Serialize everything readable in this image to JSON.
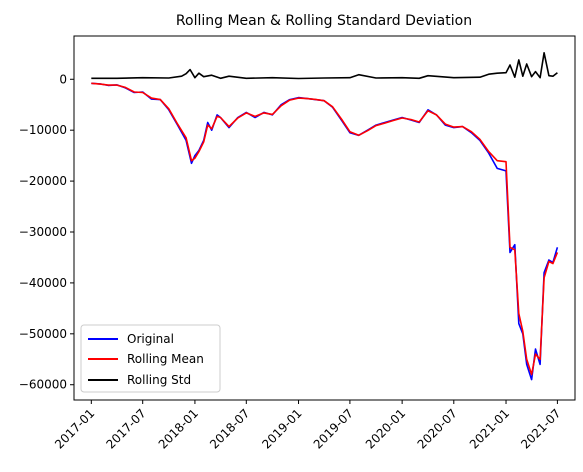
{
  "chart_data": {
    "type": "line",
    "title": "Rolling Mean & Rolling Standard Deviation",
    "xlabel": "",
    "ylabel": "",
    "x_ticks": [
      "2017-01",
      "2017-07",
      "2018-01",
      "2018-07",
      "2019-01",
      "2019-07",
      "2020-01",
      "2020-07",
      "2021-01",
      "2021-07"
    ],
    "y_ticks": [
      0,
      -10000,
      -20000,
      -30000,
      -40000,
      -50000,
      -60000
    ],
    "y_tick_labels": [
      "0",
      "−10000",
      "−20000",
      "−30000",
      "−40000",
      "−50000",
      "−60000"
    ],
    "xlim": [
      "2016-11-01",
      "2021-09-01"
    ],
    "ylim": [
      -63000,
      8500
    ],
    "grid": false,
    "legend_position": "lower-left",
    "series": [
      {
        "name": "Original",
        "color": "#0000ff",
        "x": [
          "2017-01-01",
          "2017-02-01",
          "2017-03-01",
          "2017-04-01",
          "2017-05-01",
          "2017-06-01",
          "2017-07-01",
          "2017-08-01",
          "2017-09-01",
          "2017-10-01",
          "2017-11-01",
          "2017-12-01",
          "2017-12-20",
          "2018-01-01",
          "2018-01-15",
          "2018-02-01",
          "2018-02-15",
          "2018-03-01",
          "2018-03-20",
          "2018-04-01",
          "2018-05-01",
          "2018-06-01",
          "2018-07-01",
          "2018-08-01",
          "2018-09-01",
          "2018-10-01",
          "2018-11-01",
          "2018-12-01",
          "2019-01-01",
          "2019-02-01",
          "2019-03-01",
          "2019-04-01",
          "2019-05-01",
          "2019-06-01",
          "2019-07-01",
          "2019-08-01",
          "2019-09-01",
          "2019-10-01",
          "2019-11-01",
          "2019-12-01",
          "2020-01-01",
          "2020-02-01",
          "2020-03-01",
          "2020-04-01",
          "2020-05-01",
          "2020-06-01",
          "2020-07-01",
          "2020-08-01",
          "2020-09-01",
          "2020-10-01",
          "2020-11-01",
          "2020-12-01",
          "2021-01-01",
          "2021-01-15",
          "2021-02-01",
          "2021-02-15",
          "2021-03-01",
          "2021-03-15",
          "2021-04-01",
          "2021-04-15",
          "2021-05-01",
          "2021-05-15",
          "2021-06-01",
          "2021-06-15",
          "2021-07-01"
        ],
        "y": [
          -800,
          -900,
          -1200,
          -1100,
          -1700,
          -2600,
          -2500,
          -3900,
          -4000,
          -6000,
          -9000,
          -12000,
          -16500,
          -15000,
          -14000,
          -12000,
          -8500,
          -10000,
          -7000,
          -7500,
          -9500,
          -7500,
          -6500,
          -7500,
          -6500,
          -7000,
          -5000,
          -4000,
          -3600,
          -3800,
          -4000,
          -4200,
          -5500,
          -8000,
          -10500,
          -11000,
          -10000,
          -9000,
          -8500,
          -8000,
          -7500,
          -8000,
          -8500,
          -6000,
          -7000,
          -9000,
          -9500,
          -9300,
          -10500,
          -12000,
          -14500,
          -17500,
          -18000,
          -34000,
          -32500,
          -48000,
          -50000,
          -56000,
          -59000,
          -53000,
          -56000,
          -38000,
          -35500,
          -36000,
          -33000
        ]
      },
      {
        "name": "Rolling Mean",
        "color": "#ff0000",
        "x": [
          "2017-01-01",
          "2017-02-01",
          "2017-03-01",
          "2017-04-01",
          "2017-05-01",
          "2017-06-01",
          "2017-07-01",
          "2017-08-01",
          "2017-09-01",
          "2017-10-01",
          "2017-11-01",
          "2017-12-01",
          "2017-12-20",
          "2018-01-01",
          "2018-01-15",
          "2018-02-01",
          "2018-02-15",
          "2018-03-01",
          "2018-03-20",
          "2018-04-01",
          "2018-05-01",
          "2018-06-01",
          "2018-07-01",
          "2018-08-01",
          "2018-09-01",
          "2018-10-01",
          "2018-11-01",
          "2018-12-01",
          "2019-01-01",
          "2019-02-01",
          "2019-03-01",
          "2019-04-01",
          "2019-05-01",
          "2019-06-01",
          "2019-07-01",
          "2019-08-01",
          "2019-09-01",
          "2019-10-01",
          "2019-11-01",
          "2019-12-01",
          "2020-01-01",
          "2020-02-01",
          "2020-03-01",
          "2020-04-01",
          "2020-05-01",
          "2020-06-01",
          "2020-07-01",
          "2020-08-01",
          "2020-09-01",
          "2020-10-01",
          "2020-11-01",
          "2020-12-01",
          "2021-01-01",
          "2021-01-15",
          "2021-02-01",
          "2021-02-15",
          "2021-03-01",
          "2021-03-15",
          "2021-04-01",
          "2021-04-15",
          "2021-05-01",
          "2021-05-15",
          "2021-06-01",
          "2021-06-15",
          "2021-07-01"
        ],
        "y": [
          -800,
          -950,
          -1150,
          -1150,
          -1600,
          -2500,
          -2600,
          -3700,
          -4000,
          -5800,
          -8800,
          -11500,
          -16000,
          -15500,
          -14200,
          -12300,
          -9000,
          -9700,
          -7300,
          -7500,
          -9300,
          -7600,
          -6600,
          -7300,
          -6600,
          -6900,
          -5200,
          -4100,
          -3700,
          -3800,
          -3950,
          -4200,
          -5400,
          -7800,
          -10300,
          -11000,
          -10100,
          -9100,
          -8600,
          -8100,
          -7600,
          -7900,
          -8400,
          -6200,
          -7000,
          -8800,
          -9400,
          -9300,
          -10300,
          -11800,
          -14200,
          -16000,
          -16200,
          -33000,
          -33500,
          -46000,
          -49500,
          -55000,
          -58000,
          -54000,
          -55000,
          -39000,
          -35800,
          -36200,
          -34000
        ]
      },
      {
        "name": "Rolling Std",
        "color": "#000000",
        "x": [
          "2017-01-01",
          "2017-04-01",
          "2017-07-01",
          "2017-10-01",
          "2017-11-15",
          "2017-12-01",
          "2017-12-15",
          "2018-01-01",
          "2018-01-15",
          "2018-02-01",
          "2018-03-01",
          "2018-04-01",
          "2018-05-01",
          "2018-07-01",
          "2018-10-01",
          "2019-01-01",
          "2019-04-01",
          "2019-07-01",
          "2019-08-01",
          "2019-10-01",
          "2020-01-01",
          "2020-03-01",
          "2020-04-01",
          "2020-07-01",
          "2020-10-01",
          "2020-11-01",
          "2020-12-01",
          "2021-01-01",
          "2021-01-15",
          "2021-02-01",
          "2021-02-15",
          "2021-03-01",
          "2021-03-15",
          "2021-04-01",
          "2021-04-15",
          "2021-05-01",
          "2021-05-15",
          "2021-06-01",
          "2021-06-15",
          "2021-07-01"
        ],
        "y": [
          200,
          200,
          300,
          250,
          600,
          1100,
          1900,
          300,
          1200,
          500,
          800,
          200,
          600,
          200,
          300,
          150,
          250,
          300,
          900,
          250,
          300,
          200,
          700,
          300,
          400,
          1000,
          1200,
          1300,
          2800,
          400,
          3800,
          600,
          3000,
          500,
          1500,
          300,
          5200,
          700,
          600,
          1300
        ]
      }
    ]
  }
}
